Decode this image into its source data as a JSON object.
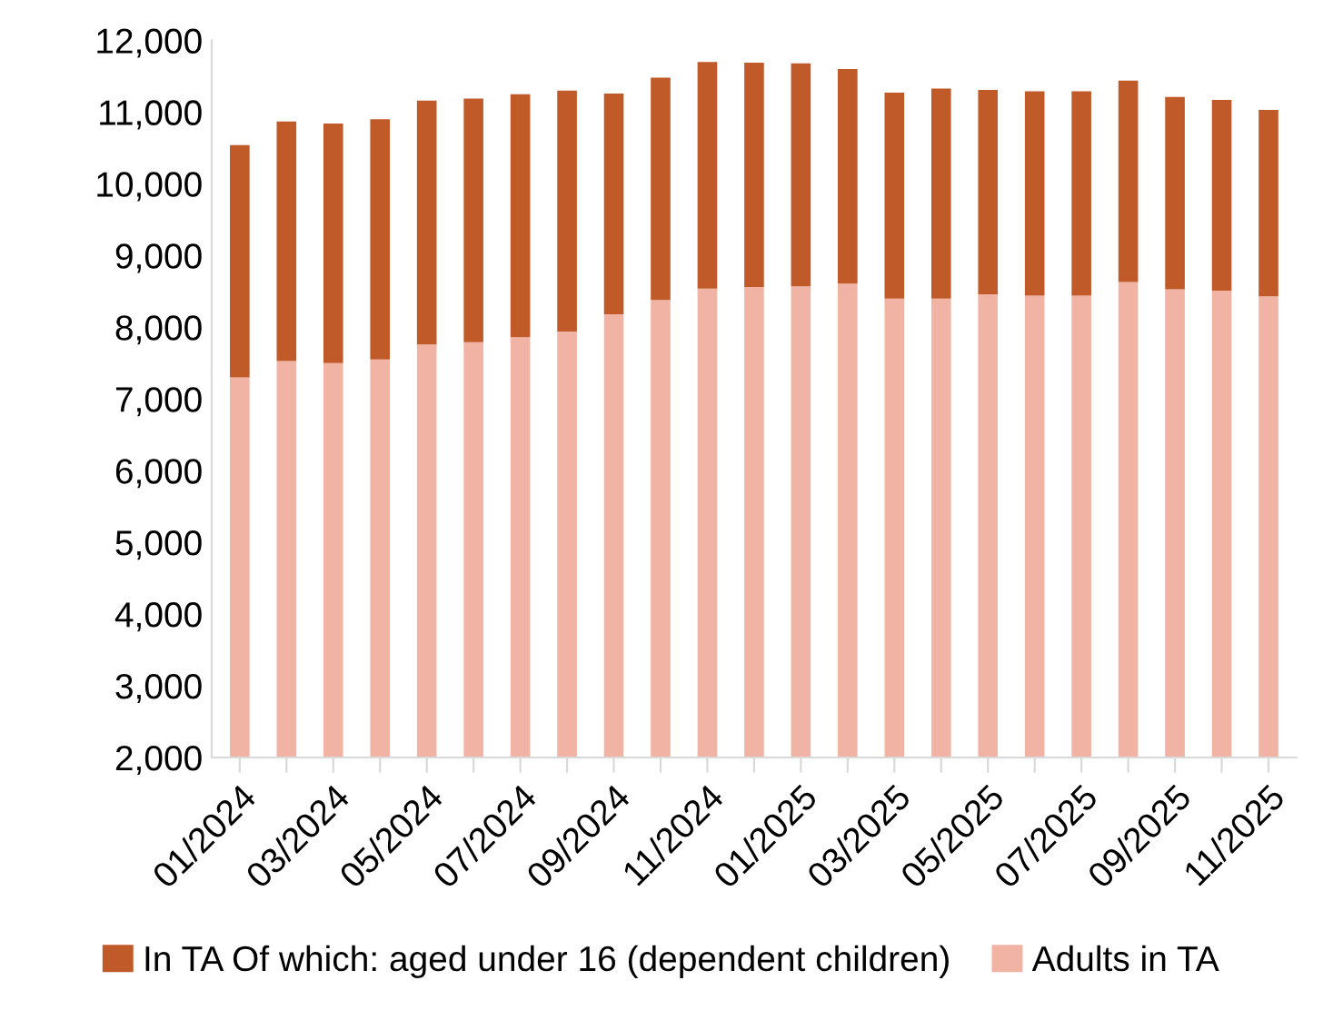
{
  "chart_data": {
    "type": "bar",
    "stacked": true,
    "categories": [
      "01/2024",
      null,
      "03/2024",
      null,
      "05/2024",
      null,
      "07/2024",
      null,
      "09/2024",
      null,
      "11/2024",
      null,
      "01/2025",
      null,
      "03/2025",
      null,
      "05/2025",
      null,
      "07/2025",
      null,
      "09/2025",
      null,
      "11/2025"
    ],
    "series": [
      {
        "name": "Adults in TA",
        "color": "#f1b3a3",
        "values": [
          7300,
          7530,
          7500,
          7550,
          7760,
          7790,
          7860,
          7940,
          8180,
          8380,
          8540,
          8560,
          8570,
          8610,
          8400,
          8400,
          8460,
          8440,
          8440,
          8630,
          8530,
          8510,
          8430
        ]
      },
      {
        "name": "In TA Of which: aged under 16 (dependent children)",
        "color": "#c05a28",
        "values": [
          3240,
          3340,
          3340,
          3350,
          3400,
          3400,
          3390,
          3360,
          3080,
          3100,
          3160,
          3130,
          3110,
          2990,
          2870,
          2930,
          2850,
          2850,
          2850,
          2810,
          2680,
          2660,
          2600
        ]
      }
    ],
    "ylim": [
      2000,
      12000
    ],
    "yticks": [
      {
        "value": 2000,
        "label": "2,000"
      },
      {
        "value": 3000,
        "label": "3,000"
      },
      {
        "value": 4000,
        "label": "4,000"
      },
      {
        "value": 5000,
        "label": "5,000"
      },
      {
        "value": 6000,
        "label": "6,000"
      },
      {
        "value": 7000,
        "label": "7,000"
      },
      {
        "value": 8000,
        "label": "8,000"
      },
      {
        "value": 9000,
        "label": "9,000"
      },
      {
        "value": 10000,
        "label": "10,000"
      },
      {
        "value": 11000,
        "label": "11,000"
      },
      {
        "value": 12000,
        "label": "12,000"
      }
    ],
    "grid": false,
    "legend": "bottom"
  }
}
